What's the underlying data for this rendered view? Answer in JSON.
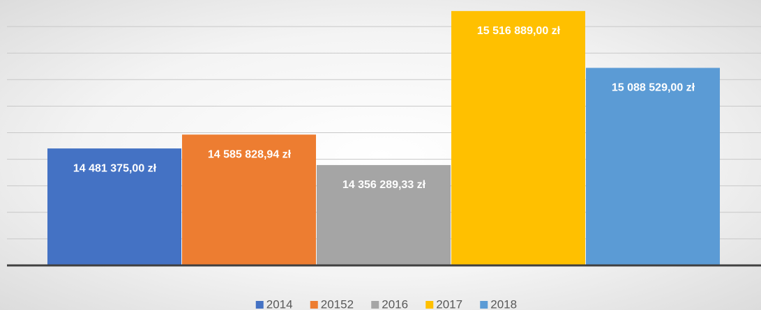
{
  "chart_data": {
    "type": "bar",
    "categories": [
      null
    ],
    "series": [
      {
        "name": "2014",
        "color": "#4472c4",
        "values": [
          14481375.0
        ],
        "value_labels": [
          "14 481 375,00 zł"
        ]
      },
      {
        "name": "20152",
        "color": "#ed7d31",
        "values": [
          14585828.94
        ],
        "value_labels": [
          "14 585 828,94 zł"
        ]
      },
      {
        "name": "2016",
        "color": "#a5a5a5",
        "values": [
          14356289.33
        ],
        "value_labels": [
          "14 356 289,33 zł"
        ]
      },
      {
        "name": "2017",
        "color": "#ffc000",
        "values": [
          15516889.0
        ],
        "value_labels": [
          "15 516 889,00 zł"
        ]
      },
      {
        "name": "2018",
        "color": "#5b9bd5",
        "values": [
          15088529.0
        ],
        "value_labels": [
          "15 088 529,00 zł"
        ]
      }
    ],
    "ylim": [
      13600000,
      15600000
    ],
    "yticks": [
      13600000,
      13800000,
      14000000,
      14200000,
      14400000,
      14600000,
      14800000,
      15000000,
      15200000,
      15400000
    ],
    "grid": true,
    "legend": "bottom"
  }
}
